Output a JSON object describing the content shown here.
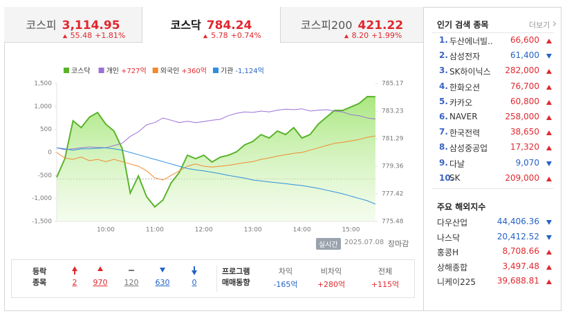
{
  "tabs": [
    {
      "name": "코스피",
      "value": "3,114.95",
      "change": "55.48",
      "rate": "+1.81%",
      "dir": "up",
      "active": false
    },
    {
      "name": "코스닥",
      "value": "784.24",
      "change": "5.78",
      "rate": "+0.74%",
      "dir": "up",
      "active": true
    },
    {
      "name": "코스피200",
      "value": "421.22",
      "change": "8.20",
      "rate": "+1.99%",
      "dir": "up",
      "active": false
    }
  ],
  "chart_data": {
    "type": "line",
    "categories": [
      "09:00",
      "09:10",
      "09:20",
      "09:30",
      "09:40",
      "09:50",
      "10:00",
      "10:10",
      "10:20",
      "10:30",
      "10:40",
      "10:50",
      "11:00",
      "11:10",
      "11:20",
      "11:30",
      "11:40",
      "11:50",
      "12:00",
      "12:10",
      "12:20",
      "12:30",
      "12:40",
      "12:50",
      "13:00",
      "13:10",
      "13:20",
      "13:30",
      "13:40",
      "13:50",
      "14:00",
      "14:10",
      "14:20",
      "14:30",
      "14:40",
      "14:50",
      "15:00",
      "15:10",
      "15:20",
      "15:30"
    ],
    "series": [
      {
        "name": "코스닥",
        "color": "#59b32a",
        "axis": "y2",
        "values": [
          778.58,
          779.89,
          782.55,
          782.07,
          782.8,
          783.13,
          782.31,
          781.83,
          780.62,
          777.47,
          778.68,
          777.22,
          776.5,
          776.98,
          778.19,
          778.92,
          780.13,
          779.89,
          780.13,
          779.65,
          779.99,
          780.13,
          780.37,
          780.86,
          781.1,
          781.58,
          781.34,
          781.83,
          781.58,
          782.07,
          781.34,
          781.58,
          782.31,
          782.8,
          783.28,
          783.28,
          783.52,
          783.77,
          784.25,
          784.24
        ]
      },
      {
        "name": "개인",
        "net": "+727억",
        "color": "#9b6fd6",
        "values": [
          100,
          60,
          80,
          100,
          120,
          110,
          100,
          150,
          200,
          350,
          450,
          600,
          650,
          750,
          700,
          650,
          680,
          650,
          670,
          700,
          720,
          800,
          850,
          880,
          870,
          900,
          880,
          920,
          940,
          930,
          950,
          900,
          920,
          930,
          900,
          880,
          820,
          800,
          750,
          727
        ]
      },
      {
        "name": "외국인",
        "net": "+360억",
        "color": "#f28a2e",
        "values": [
          0,
          -120,
          -150,
          -100,
          -180,
          -150,
          -200,
          -150,
          -200,
          -250,
          -300,
          -400,
          -550,
          -600,
          -500,
          -400,
          -300,
          -250,
          -300,
          -320,
          -300,
          -280,
          -250,
          -220,
          -200,
          -150,
          -120,
          -80,
          -50,
          -20,
          0,
          50,
          100,
          150,
          200,
          220,
          250,
          280,
          330,
          360
        ]
      },
      {
        "name": "기관",
        "net": "-1,124억",
        "color": "#2e8fe0",
        "values": [
          100,
          80,
          50,
          80,
          80,
          90,
          100,
          80,
          50,
          0,
          -50,
          -100,
          -150,
          -200,
          -250,
          -300,
          -350,
          -380,
          -400,
          -430,
          -460,
          -500,
          -530,
          -560,
          -600,
          -620,
          -640,
          -660,
          -680,
          -700,
          -720,
          -750,
          -780,
          -820,
          -860,
          -900,
          -950,
          -1000,
          -1050,
          -1124
        ]
      }
    ],
    "ylim": [
      -1500,
      1500
    ],
    "yticks": [
      {
        "value": 1500,
        "label": "1,500"
      },
      {
        "value": 1000,
        "label": "1,000"
      },
      500,
      0,
      -500,
      {
        "value": -1000,
        "label": "-1,000"
      },
      {
        "value": -1500,
        "label": "-1,500"
      }
    ],
    "y2lim": [
      775.48,
      785.17
    ],
    "y2ticks": [
      785.17,
      783.23,
      781.29,
      779.36,
      777.42,
      775.48
    ],
    "xticks": [
      "10:00",
      "11:00",
      "12:00",
      "13:00",
      "14:00",
      "15:00"
    ],
    "reference_line": 778.46
  },
  "status": {
    "badge": "실시간",
    "date": "2025.07.08",
    "state": "장마감"
  },
  "breadth": {
    "label": [
      "등락",
      "종목"
    ],
    "items": [
      {
        "count": "2",
        "kind": "upper"
      },
      {
        "count": "970",
        "kind": "up"
      },
      {
        "count": "120",
        "kind": "flat"
      },
      {
        "count": "630",
        "kind": "down"
      },
      {
        "count": "0",
        "kind": "lower"
      }
    ]
  },
  "program": {
    "label": [
      "프로그램",
      "매매동향"
    ],
    "items": [
      {
        "name": "차익",
        "value": "-165억",
        "dir": "down"
      },
      {
        "name": "비차익",
        "value": "+280억",
        "dir": "up"
      },
      {
        "name": "전체",
        "value": "+115억",
        "dir": "up"
      }
    ]
  },
  "popular": {
    "title": "인기 검색 종목",
    "more": "더보기",
    "items": [
      {
        "rank": "1.",
        "name": "두산에너빌..",
        "price": "66,600",
        "dir": "up"
      },
      {
        "rank": "2.",
        "name": "삼성전자",
        "price": "61,400",
        "dir": "down"
      },
      {
        "rank": "3.",
        "name": "SK하이닉스",
        "price": "282,000",
        "dir": "up"
      },
      {
        "rank": "4.",
        "name": "한화오션",
        "price": "76,700",
        "dir": "up"
      },
      {
        "rank": "5.",
        "name": "카카오",
        "price": "60,800",
        "dir": "up"
      },
      {
        "rank": "6.",
        "name": "NAVER",
        "price": "258,000",
        "dir": "up"
      },
      {
        "rank": "7.",
        "name": "한국전력",
        "price": "38,650",
        "dir": "up"
      },
      {
        "rank": "8.",
        "name": "삼성중공업",
        "price": "17,320",
        "dir": "up"
      },
      {
        "rank": "9.",
        "name": "다날",
        "price": "9,070",
        "dir": "down"
      },
      {
        "rank": "10.",
        "name": "SK",
        "price": "209,000",
        "dir": "up"
      }
    ]
  },
  "overseas": {
    "title": "주요 해외지수",
    "items": [
      {
        "name": "다우산업",
        "value": "44,406.36",
        "dir": "down"
      },
      {
        "name": "나스닥",
        "value": "20,412.52",
        "dir": "down"
      },
      {
        "name": "홍콩H",
        "value": "8,708.66",
        "dir": "up"
      },
      {
        "name": "상해종합",
        "value": "3,497.48",
        "dir": "up"
      },
      {
        "name": "니케이225",
        "value": "39,688.81",
        "dir": "up"
      }
    ]
  }
}
